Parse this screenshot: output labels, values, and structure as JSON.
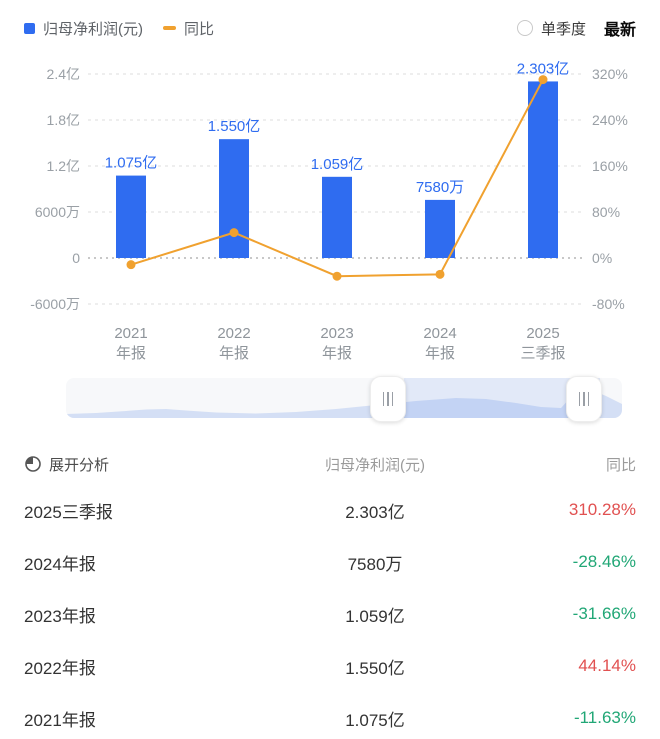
{
  "legend": {
    "bar_label": "归母净利润(元)",
    "line_label": "同比"
  },
  "controls": {
    "quarter_toggle": "单季度",
    "latest": "最新"
  },
  "chart_data": {
    "type": "bar-line-combo",
    "categories": [
      "2021年报",
      "2022年报",
      "2023年报",
      "2024年报",
      "2025三季报"
    ],
    "categories_line1": [
      "2021",
      "2022",
      "2023",
      "2024",
      "2025"
    ],
    "categories_line2": [
      "年报",
      "年报",
      "年报",
      "年报",
      "三季报"
    ],
    "bar_series": {
      "name": "归母净利润(元)",
      "values": [
        107500000,
        155000000,
        105900000,
        75800000,
        230300000
      ],
      "labels": [
        "1.075亿",
        "1.550亿",
        "1.059亿",
        "7580万",
        "2.303亿"
      ]
    },
    "line_series": {
      "name": "同比",
      "unit": "%",
      "values": [
        -11.63,
        44.14,
        -31.66,
        -28.46,
        310.28
      ]
    },
    "left_axis": {
      "ticks": [
        "2.4亿",
        "1.8亿",
        "1.2亿",
        "6000万",
        "0",
        "-6000万"
      ],
      "values": [
        240000000,
        180000000,
        120000000,
        60000000,
        0,
        -60000000
      ]
    },
    "right_axis": {
      "ticks": [
        "320%",
        "240%",
        "160%",
        "80%",
        "0%",
        "-80%"
      ],
      "values": [
        320,
        240,
        160,
        80,
        0,
        -80
      ]
    },
    "grid": "dashed-horizontal",
    "legend_position": "top-left"
  },
  "table": {
    "header": {
      "expand": "展开分析",
      "value_col": "归母净利润(元)",
      "yoy_col": "同比"
    },
    "rows": [
      {
        "period": "2025三季报",
        "value": "2.303亿",
        "yoy": "310.28%",
        "direction": "up"
      },
      {
        "period": "2024年报",
        "value": "7580万",
        "yoy": "-28.46%",
        "direction": "down"
      },
      {
        "period": "2023年报",
        "value": "1.059亿",
        "yoy": "-31.66%",
        "direction": "down"
      },
      {
        "period": "2022年报",
        "value": "1.550亿",
        "yoy": "44.14%",
        "direction": "up"
      },
      {
        "period": "2021年报",
        "value": "1.075亿",
        "yoy": "-11.63%",
        "direction": "down"
      }
    ]
  },
  "colors": {
    "bar": "#2f6cf0",
    "line": "#f0a12f",
    "up": "#e15151",
    "down": "#21a776",
    "axis_text": "#9aa0a6"
  }
}
